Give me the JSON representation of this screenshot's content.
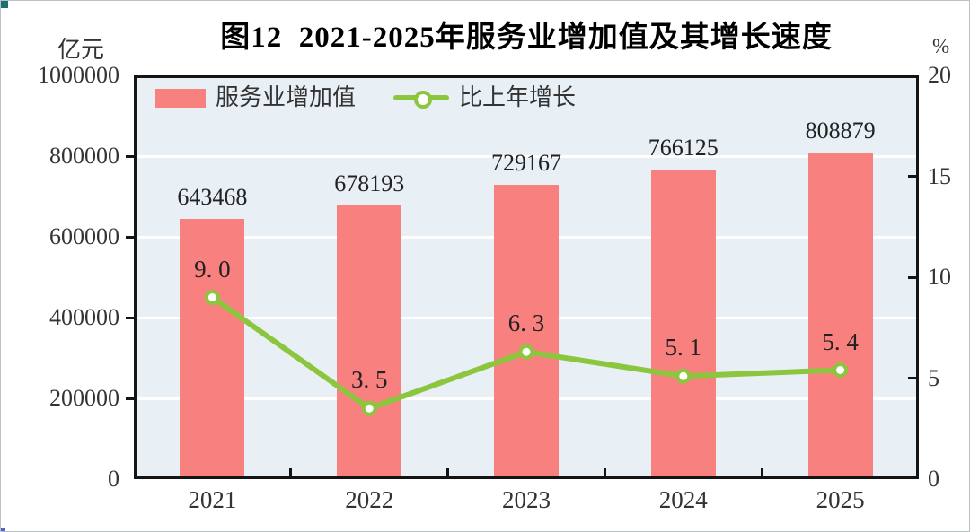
{
  "header": {
    "title": "图12  2021-2025年服务业增加值及其增长速度"
  },
  "legend": {
    "items": [
      {
        "label": "服务业增加值",
        "swatch": "bar"
      },
      {
        "label": "比上年增长",
        "swatch": "line-marker"
      }
    ]
  },
  "chart_data": {
    "type": "bar",
    "subtype": "bar+line combo, dual axis",
    "title": "图12  2021-2025年服务业增加值及其增长速度",
    "categories": [
      "2021",
      "2022",
      "2023",
      "2024",
      "2025"
    ],
    "series": [
      {
        "name": "服务业增加值",
        "type": "bar",
        "axis": "left",
        "values": [
          643468,
          678193,
          729167,
          766125,
          808879
        ],
        "labels": [
          "643468",
          "678193",
          "729167",
          "766125",
          "808879"
        ],
        "color": "#F8807F"
      },
      {
        "name": "比上年增长",
        "type": "line",
        "axis": "right",
        "values": [
          9.0,
          3.5,
          6.3,
          5.1,
          5.4
        ],
        "labels": [
          "9. 0",
          "3. 5",
          "6. 3",
          "5. 1",
          "5. 4"
        ],
        "color": "#8CC63F",
        "marker": "circle-white-fill"
      }
    ],
    "left_axis": {
      "unit": "亿元",
      "min": 0,
      "max": 1000000,
      "ticks": [
        1000000,
        800000,
        600000,
        400000,
        200000,
        0
      ],
      "tick_labels": [
        "1000000",
        "800000",
        "600000",
        "400000",
        "200000",
        "0"
      ]
    },
    "right_axis": {
      "unit": "%",
      "min": 0,
      "max": 20,
      "ticks": [
        20,
        15,
        10,
        5,
        0
      ],
      "tick_labels": [
        "20",
        "15",
        "10",
        "5",
        "0"
      ]
    },
    "grid": true,
    "legend_position": "top-left-inside",
    "plot_bg": "#E8EFF5",
    "grid_color": "#ffffff",
    "axis_color": "#141414"
  }
}
